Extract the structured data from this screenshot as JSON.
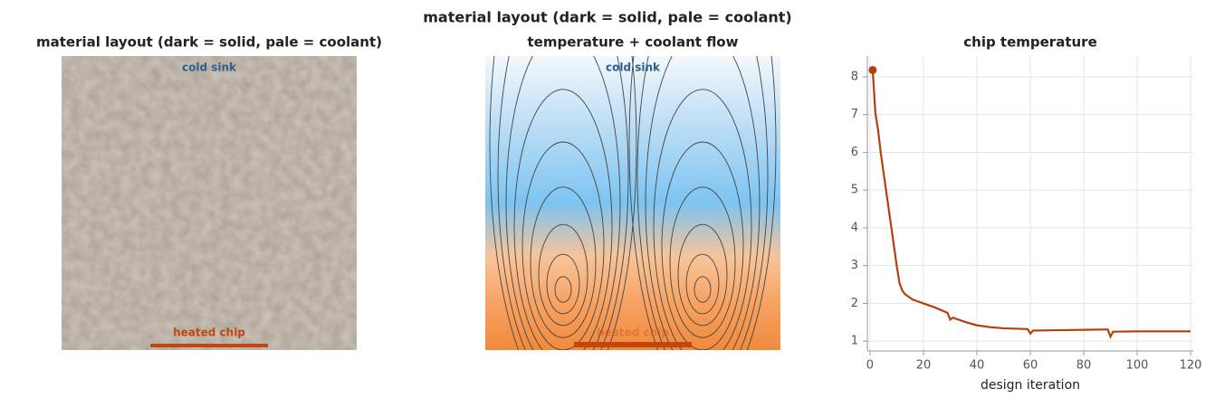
{
  "chart_data": [
    {
      "type": "image",
      "title": "material layout   (dark = solid, pale = coolant)",
      "annotations": [
        "cold sink",
        "heated chip"
      ]
    },
    {
      "type": "image",
      "title": "temperature + coolant flow",
      "annotations": [
        "cold sink",
        "heated chip"
      ]
    },
    {
      "type": "line",
      "title": "chip temperature",
      "xlabel": "design iteration",
      "color": "#b5400f",
      "x": [
        1,
        2,
        3,
        4,
        5,
        6,
        7,
        8,
        9,
        10,
        11,
        12,
        13,
        16,
        20,
        24,
        29,
        30,
        31,
        36,
        40,
        45,
        50,
        59,
        60,
        61,
        70,
        80,
        89,
        90,
        91,
        100,
        110,
        120
      ],
      "values": [
        8.18,
        7.05,
        6.6,
        6.0,
        5.5,
        5.0,
        4.5,
        4.0,
        3.5,
        3.0,
        2.55,
        2.35,
        2.25,
        2.1,
        2.0,
        1.9,
        1.75,
        1.57,
        1.62,
        1.5,
        1.42,
        1.37,
        1.34,
        1.32,
        1.2,
        1.28,
        1.29,
        1.3,
        1.31,
        1.12,
        1.25,
        1.26,
        1.26,
        1.26
      ],
      "marker": {
        "x": [
          1
        ],
        "values": [
          8.18
        ]
      },
      "xlim": [
        -1,
        121
      ],
      "ylim": [
        0.74,
        8.55
      ],
      "xticks": [
        0,
        20,
        40,
        60,
        80,
        100,
        120
      ],
      "yticks": [
        1,
        2,
        3,
        4,
        5,
        6,
        7,
        8
      ],
      "grid": true
    }
  ]
}
